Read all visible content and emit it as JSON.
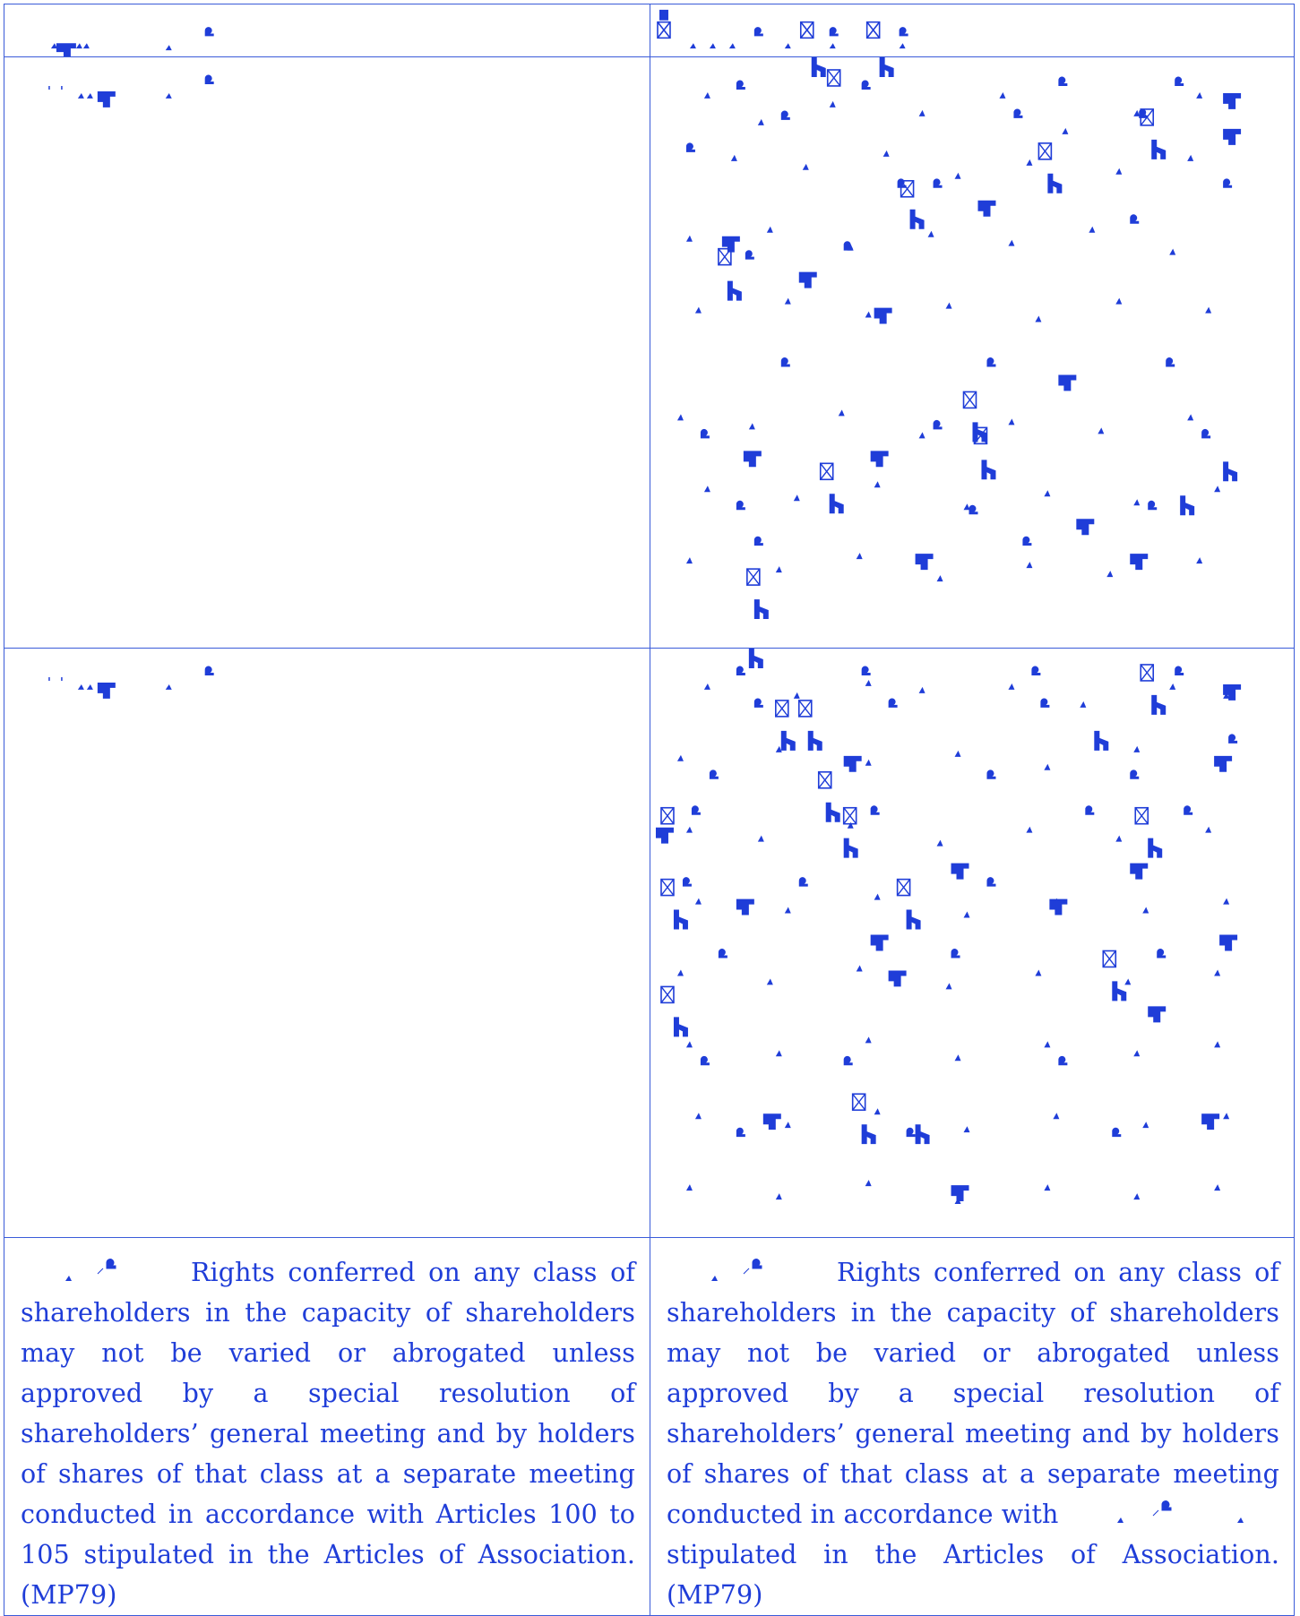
{
  "colors": {
    "text": "#1f3dd8",
    "border": "#3a5bd9",
    "background": "#ffffff"
  },
  "table": {
    "left": {
      "clause_text": "Rights conferred on any class of shareholders in the capacity of shareholders may not be varied or abrogated unless approved by a special resolution of shareholders’ general meeting and by holders of shares of that class at a separate meeting conducted in accordance with Articles 100 to 105 stipulated in the Articles of Association. (MP79)"
    },
    "right": {
      "clause_text_part1": "Rights conferred on any class of shareholders in the capacity of shareholders may not be varied or abrogated unless approved by a special resolution of shareholders’ general meeting and by holders of shares of that class at a separate meeting conducted in accordance with",
      "clause_text_part2": "stipulated in the Articles of Association. (MP79)"
    }
  }
}
